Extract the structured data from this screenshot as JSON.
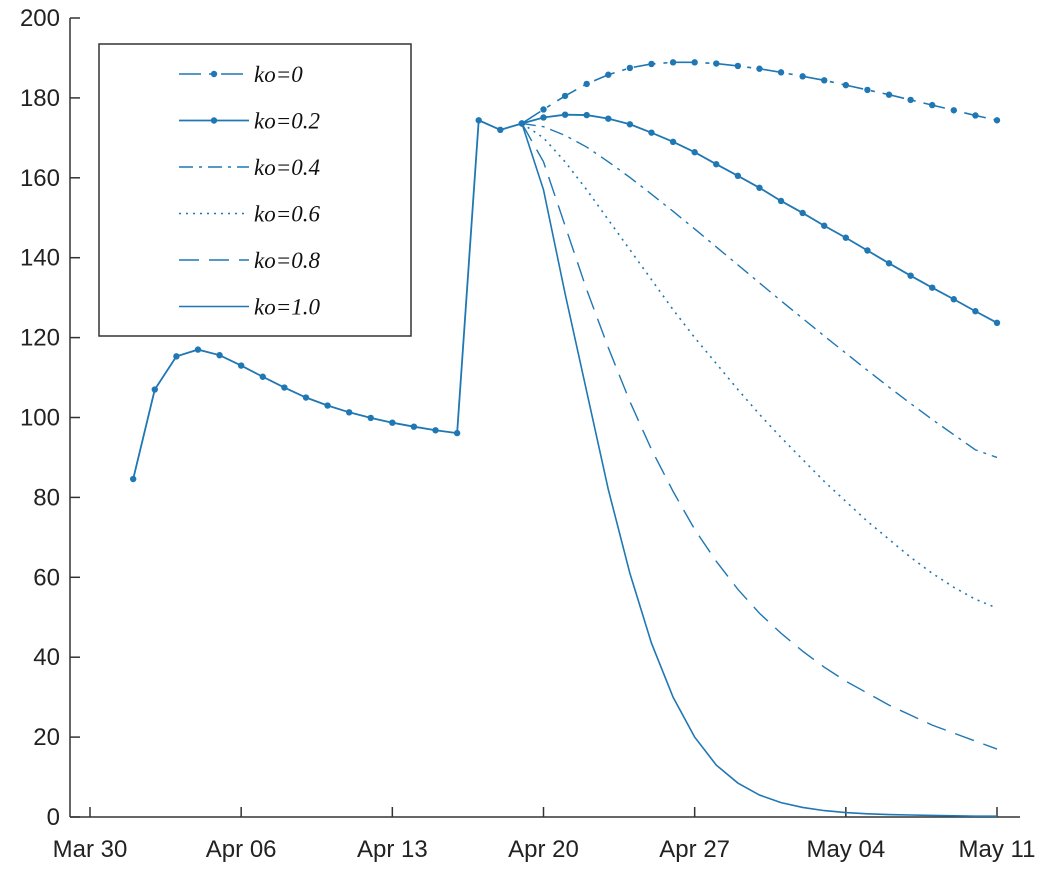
{
  "chart_data": {
    "type": "line",
    "x_axis": {
      "kind": "date",
      "range": [
        "2020-03-29",
        "2020-05-11"
      ],
      "ticks": [
        {
          "date": "2020-03-30",
          "label": "Mar 30"
        },
        {
          "date": "2020-04-06",
          "label": "Apr 06"
        },
        {
          "date": "2020-04-13",
          "label": "Apr 13"
        },
        {
          "date": "2020-04-20",
          "label": "Apr 20"
        },
        {
          "date": "2020-04-27",
          "label": "Apr 27"
        },
        {
          "date": "2020-05-04",
          "label": "May 04"
        },
        {
          "date": "2020-05-11",
          "label": "May 11"
        }
      ]
    },
    "y_axis": {
      "range": [
        0,
        200
      ],
      "ticks": [
        0,
        20,
        40,
        60,
        80,
        100,
        120,
        140,
        160,
        180,
        200
      ]
    },
    "grid": false,
    "legend_position": "top-left",
    "color": "#1f77b4",
    "observed": {
      "dates": [
        "2020-04-01",
        "2020-04-02",
        "2020-04-03",
        "2020-04-04",
        "2020-04-05",
        "2020-04-06",
        "2020-04-07",
        "2020-04-08",
        "2020-04-09",
        "2020-04-10",
        "2020-04-11",
        "2020-04-12",
        "2020-04-13",
        "2020-04-14",
        "2020-04-15",
        "2020-04-16",
        "2020-04-17",
        "2020-04-18",
        "2020-04-19"
      ],
      "values": [
        84.6,
        107.0,
        115.3,
        117.0,
        115.6,
        113.0,
        110.2,
        107.5,
        105.0,
        103.0,
        101.3,
        99.9,
        98.7,
        97.7,
        96.8,
        96.1,
        174.4,
        172.0,
        173.6
      ]
    },
    "series": [
      {
        "name": "ko=0",
        "style": "dash-dot-markers",
        "dates": [
          "2020-04-19",
          "2020-04-20",
          "2020-04-21",
          "2020-04-22",
          "2020-04-23",
          "2020-04-24",
          "2020-04-25",
          "2020-04-26",
          "2020-04-27",
          "2020-04-28",
          "2020-04-29",
          "2020-04-30",
          "2020-05-01",
          "2020-05-02",
          "2020-05-03",
          "2020-05-04",
          "2020-05-05",
          "2020-05-06",
          "2020-05-07",
          "2020-05-08",
          "2020-05-09",
          "2020-05-10",
          "2020-05-11"
        ],
        "values": [
          173.6,
          177.1,
          180.5,
          183.5,
          185.8,
          187.5,
          188.5,
          188.9,
          188.9,
          188.6,
          188.0,
          187.3,
          186.4,
          185.4,
          184.4,
          183.2,
          182.0,
          180.8,
          179.5,
          178.2,
          176.9,
          175.6,
          174.4
        ]
      },
      {
        "name": "ko=0.2",
        "style": "solid-markers",
        "dates": [
          "2020-04-19",
          "2020-04-20",
          "2020-04-21",
          "2020-04-22",
          "2020-04-23",
          "2020-04-24",
          "2020-04-25",
          "2020-04-26",
          "2020-04-27",
          "2020-04-28",
          "2020-04-29",
          "2020-04-30",
          "2020-05-01",
          "2020-05-02",
          "2020-05-03",
          "2020-05-04",
          "2020-05-05",
          "2020-05-06",
          "2020-05-07",
          "2020-05-08",
          "2020-05-09",
          "2020-05-10",
          "2020-05-11"
        ],
        "values": [
          173.6,
          175.1,
          175.8,
          175.7,
          174.8,
          173.4,
          171.3,
          169.0,
          166.4,
          163.4,
          160.5,
          157.5,
          154.2,
          151.2,
          148.0,
          145.0,
          141.8,
          138.6,
          135.5,
          132.5,
          129.6,
          126.6,
          123.7
        ]
      },
      {
        "name": "ko=0.4",
        "style": "dash-dot",
        "dates": [
          "2020-04-19",
          "2020-04-20",
          "2020-04-21",
          "2020-04-22",
          "2020-04-23",
          "2020-04-24",
          "2020-04-25",
          "2020-04-26",
          "2020-04-27",
          "2020-04-28",
          "2020-04-29",
          "2020-04-30",
          "2020-05-01",
          "2020-05-02",
          "2020-05-03",
          "2020-05-04",
          "2020-05-05",
          "2020-05-06",
          "2020-05-07",
          "2020-05-08",
          "2020-05-09",
          "2020-05-10",
          "2020-05-11"
        ],
        "values": [
          173.6,
          172.8,
          170.6,
          167.7,
          164.0,
          160.1,
          155.9,
          151.6,
          147.2,
          142.7,
          138.2,
          133.7,
          129.2,
          124.8,
          120.4,
          116.1,
          111.8,
          107.6,
          103.5,
          99.5,
          95.7,
          91.9,
          90.0
        ]
      },
      {
        "name": "ko=0.6",
        "style": "dotted",
        "dates": [
          "2020-04-19",
          "2020-04-20",
          "2020-04-21",
          "2020-04-22",
          "2020-04-23",
          "2020-04-24",
          "2020-04-25",
          "2020-04-26",
          "2020-04-27",
          "2020-04-28",
          "2020-04-29",
          "2020-04-30",
          "2020-05-01",
          "2020-05-02",
          "2020-05-03",
          "2020-05-04",
          "2020-05-05",
          "2020-05-06",
          "2020-05-07",
          "2020-05-08",
          "2020-05-09",
          "2020-05-10",
          "2020-05-11"
        ],
        "values": [
          173.6,
          170.0,
          164.0,
          157.0,
          149.5,
          142.0,
          134.5,
          127.0,
          120.0,
          113.5,
          107.0,
          100.8,
          95.0,
          89.5,
          84.0,
          79.0,
          74.0,
          69.5,
          65.0,
          61.0,
          57.5,
          54.5,
          52.3
        ]
      },
      {
        "name": "ko=0.8",
        "style": "dashed",
        "dates": [
          "2020-04-19",
          "2020-04-20",
          "2020-04-21",
          "2020-04-22",
          "2020-04-23",
          "2020-04-24",
          "2020-04-25",
          "2020-04-26",
          "2020-04-27",
          "2020-04-28",
          "2020-04-29",
          "2020-04-30",
          "2020-05-01",
          "2020-05-02",
          "2020-05-03",
          "2020-05-04",
          "2020-05-05",
          "2020-05-06",
          "2020-05-07",
          "2020-05-08",
          "2020-05-09",
          "2020-05-10",
          "2020-05-11"
        ],
        "values": [
          173.6,
          164.0,
          148.0,
          132.0,
          117.5,
          104.0,
          92.0,
          81.5,
          72.0,
          64.0,
          57.0,
          51.0,
          46.0,
          41.5,
          37.5,
          34.0,
          31.0,
          28.0,
          25.5,
          23.0,
          21.0,
          19.0,
          17.0
        ]
      },
      {
        "name": "ko=1.0",
        "style": "solid",
        "dates": [
          "2020-04-19",
          "2020-04-20",
          "2020-04-21",
          "2020-04-22",
          "2020-04-23",
          "2020-04-24",
          "2020-04-25",
          "2020-04-26",
          "2020-04-27",
          "2020-04-28",
          "2020-04-29",
          "2020-04-30",
          "2020-05-01",
          "2020-05-02",
          "2020-05-03",
          "2020-05-04",
          "2020-05-05",
          "2020-05-06",
          "2020-05-07",
          "2020-05-08",
          "2020-05-09",
          "2020-05-10",
          "2020-05-11"
        ],
        "values": [
          173.6,
          157.0,
          131.0,
          106.5,
          82.0,
          61.0,
          43.5,
          30.0,
          20.0,
          13.0,
          8.5,
          5.5,
          3.6,
          2.4,
          1.6,
          1.1,
          0.8,
          0.6,
          0.5,
          0.4,
          0.3,
          0.2,
          0.2
        ]
      }
    ]
  }
}
